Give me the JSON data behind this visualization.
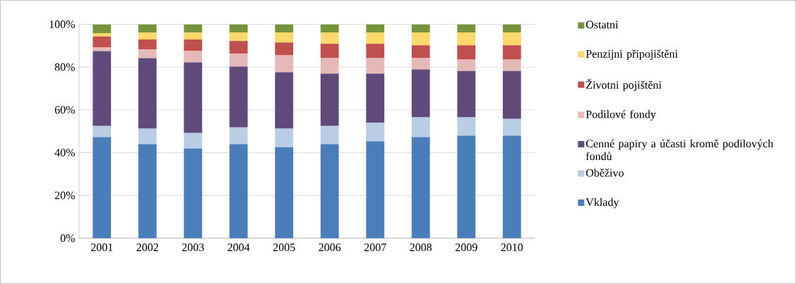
{
  "chart_data": {
    "type": "bar",
    "stacked": true,
    "grid": "y",
    "legend": "right",
    "categories": [
      "2001",
      "2002",
      "2003",
      "2004",
      "2005",
      "2006",
      "2007",
      "2008",
      "2009",
      "2010"
    ],
    "ylim": [
      0,
      100
    ],
    "yticks": [
      {
        "value": 0,
        "label": "0%"
      },
      {
        "value": 20,
        "label": "20%"
      },
      {
        "value": 40,
        "label": "40%"
      },
      {
        "value": 60,
        "label": "60%"
      },
      {
        "value": 80,
        "label": "80%"
      },
      {
        "value": 100,
        "label": "100%"
      }
    ],
    "series": [
      {
        "name": "Vklady",
        "color": "#4a7ebb",
        "values": [
          47.3,
          44.0,
          41.9,
          44.0,
          42.5,
          44.0,
          45.3,
          47.3,
          47.9,
          47.9
        ]
      },
      {
        "name": "Oběživo",
        "color": "#b9cde5",
        "values": [
          5.2,
          7.2,
          7.3,
          7.8,
          8.7,
          8.5,
          8.7,
          9.2,
          8.6,
          7.9
        ]
      },
      {
        "name": "Cenné papiry a účasti kromě podilových fondů",
        "color": "#604a7b",
        "values": [
          35.0,
          33.0,
          33.0,
          28.4,
          26.4,
          24.4,
          22.9,
          22.4,
          21.7,
          22.4
        ]
      },
      {
        "name": "Podilové fondy",
        "color": "#e6b9b8",
        "values": [
          1.8,
          4.0,
          5.4,
          6.1,
          7.9,
          7.3,
          7.3,
          5.3,
          5.3,
          5.3
        ]
      },
      {
        "name": "Životni pojištěni",
        "color": "#c0504d",
        "values": [
          5.0,
          4.7,
          5.3,
          5.9,
          6.0,
          6.7,
          6.7,
          6.0,
          6.7,
          6.7
        ]
      },
      {
        "name": "Penzijni připojištěni",
        "color": "#fcd96a",
        "values": [
          1.6,
          3.3,
          3.3,
          4.0,
          4.7,
          5.3,
          5.3,
          6.0,
          6.0,
          6.0
        ]
      },
      {
        "name": "Ostatni",
        "color": "#77933c",
        "values": [
          4.1,
          3.8,
          3.8,
          3.8,
          3.8,
          3.8,
          3.8,
          3.8,
          3.8,
          3.8
        ]
      }
    ]
  }
}
